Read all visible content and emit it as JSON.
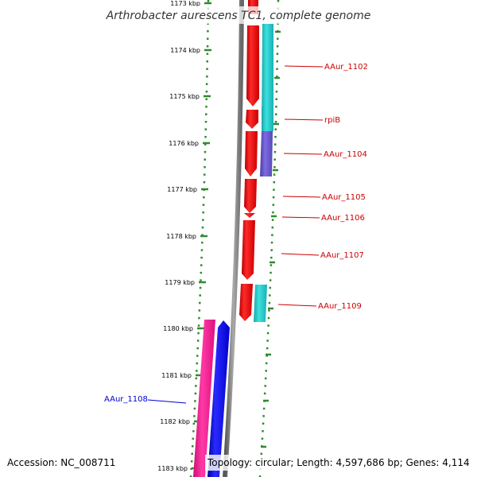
{
  "title": "Arthrobacter aurescens TC1, complete genome",
  "accession": "Accession: NC_008711",
  "topology": "Topology: circular; Length: 4,597,686 bp; Genes: 4,114",
  "ticks": [
    "1173 kbp",
    "1174 kbp",
    "1175 kbp",
    "1176 kbp",
    "1177 kbp",
    "1178 kbp",
    "1179 kbp",
    "1180 kbp",
    "1181 kbp",
    "1182 kbp",
    "1183 kbp"
  ],
  "labels": {
    "AAur_1102": "AAur_1102",
    "rpiB": "rpiB",
    "AAur_1104": "AAur_1104",
    "AAur_1105": "AAur_1105",
    "AAur_1106": "AAur_1106",
    "AAur_1107": "AAur_1107",
    "AAur_1109": "AAur_1109",
    "AAur_1108": "AAur_1108"
  },
  "colors": {
    "forward_gene": "#ff0000",
    "reverse_gene": "#0000ff",
    "cog_cyan": "#20c8c8",
    "cog_purple": "#6a5acd",
    "cog_pink": "#ff1493",
    "tick": "#2e8b2e",
    "backbone": "#808080",
    "forward_label": "#cc0000",
    "reverse_label": "#0000cc"
  }
}
